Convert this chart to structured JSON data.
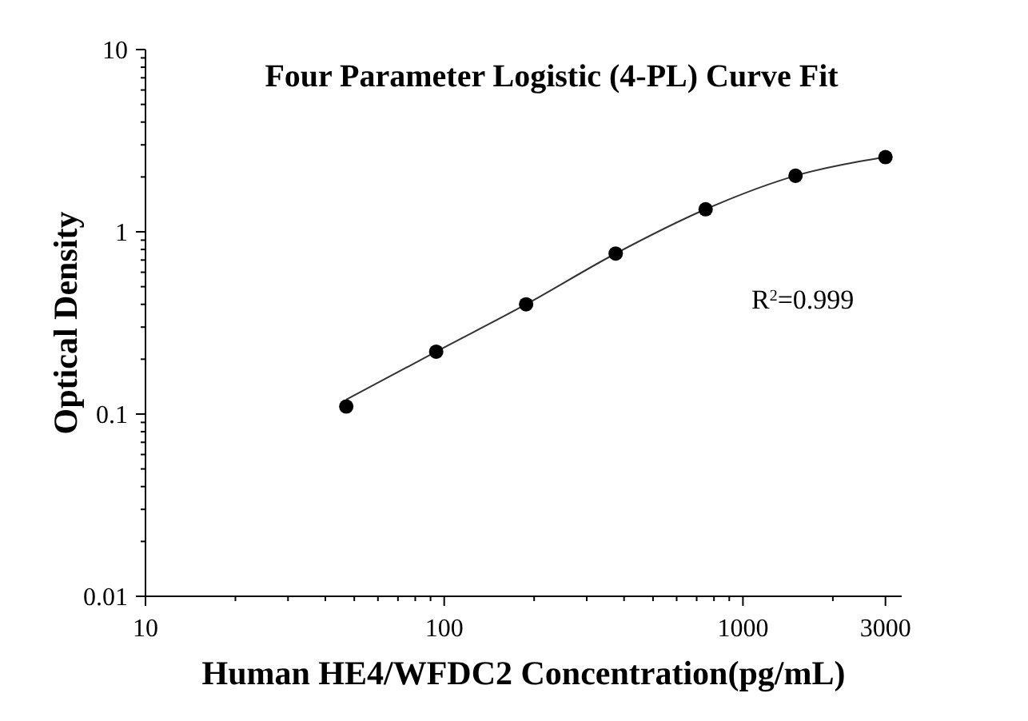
{
  "chart_data": {
    "type": "scatter",
    "title": "Four Parameter Logistic (4-PL) Curve Fit",
    "xlabel": "Human HE4/WFDC2 Concentration(pg/mL)",
    "ylabel": "Optical Density",
    "annotations": [
      "R$^{2}$=0.999"
    ],
    "log": "xy",
    "xlim": [
      10,
      3400
    ],
    "xticks": [
      10,
      {
        "value": 20,
        "label": null
      },
      {
        "value": 30,
        "label": null
      },
      {
        "value": 40,
        "label": null
      },
      {
        "value": 50,
        "label": null
      },
      {
        "value": 60,
        "label": null
      },
      {
        "value": 70,
        "label": null
      },
      {
        "value": 80,
        "label": null
      },
      {
        "value": 90,
        "label": null
      },
      100,
      {
        "value": 200,
        "label": null
      },
      {
        "value": 300,
        "label": null
      },
      {
        "value": 400,
        "label": null
      },
      {
        "value": 500,
        "label": null
      },
      {
        "value": 600,
        "label": null
      },
      {
        "value": 700,
        "label": null
      },
      {
        "value": 800,
        "label": null
      },
      {
        "value": 900,
        "label": null
      },
      1000,
      {
        "value": 2000,
        "label": null
      },
      3000
    ],
    "ylim": [
      0.01,
      10
    ],
    "yticks": [
      0.01,
      {
        "value": 0.02,
        "label": null
      },
      {
        "value": 0.03,
        "label": null
      },
      {
        "value": 0.04,
        "label": null
      },
      {
        "value": 0.05,
        "label": null
      },
      {
        "value": 0.06,
        "label": null
      },
      {
        "value": 0.07,
        "label": null
      },
      {
        "value": 0.08,
        "label": null
      },
      {
        "value": 0.09,
        "label": null
      },
      0.1,
      {
        "value": 0.2,
        "label": null
      },
      {
        "value": 0.3,
        "label": null
      },
      {
        "value": 0.4,
        "label": null
      },
      {
        "value": 0.5,
        "label": null
      },
      {
        "value": 0.6,
        "label": null
      },
      {
        "value": 0.7,
        "label": null
      },
      {
        "value": 0.8,
        "label": null
      },
      {
        "value": 0.9,
        "label": null
      },
      1,
      {
        "value": 2,
        "label": null
      },
      {
        "value": 3,
        "label": null
      },
      {
        "value": 4,
        "label": null
      },
      {
        "value": 5,
        "label": null
      },
      {
        "value": 6,
        "label": null
      },
      {
        "value": 7,
        "label": null
      },
      {
        "value": 8,
        "label": null
      },
      {
        "value": 9,
        "label": null
      },
      10
    ],
    "series": [
      {
        "type": "line",
        "color": "#333333",
        "marker": "none",
        "line_style": "solid",
        "x": [
          47,
          94,
          188,
          375,
          750,
          1500,
          3000
        ],
        "values": [
          0.12,
          0.22,
          0.4,
          0.76,
          1.33,
          2.03,
          2.57
        ]
      },
      {
        "color": "#000000",
        "marker": "circle",
        "x": [
          47,
          94,
          188,
          375,
          750,
          1500,
          3000
        ],
        "values": [
          0.11,
          0.22,
          0.4,
          0.76,
          1.33,
          2.03,
          2.57
        ]
      }
    ]
  }
}
